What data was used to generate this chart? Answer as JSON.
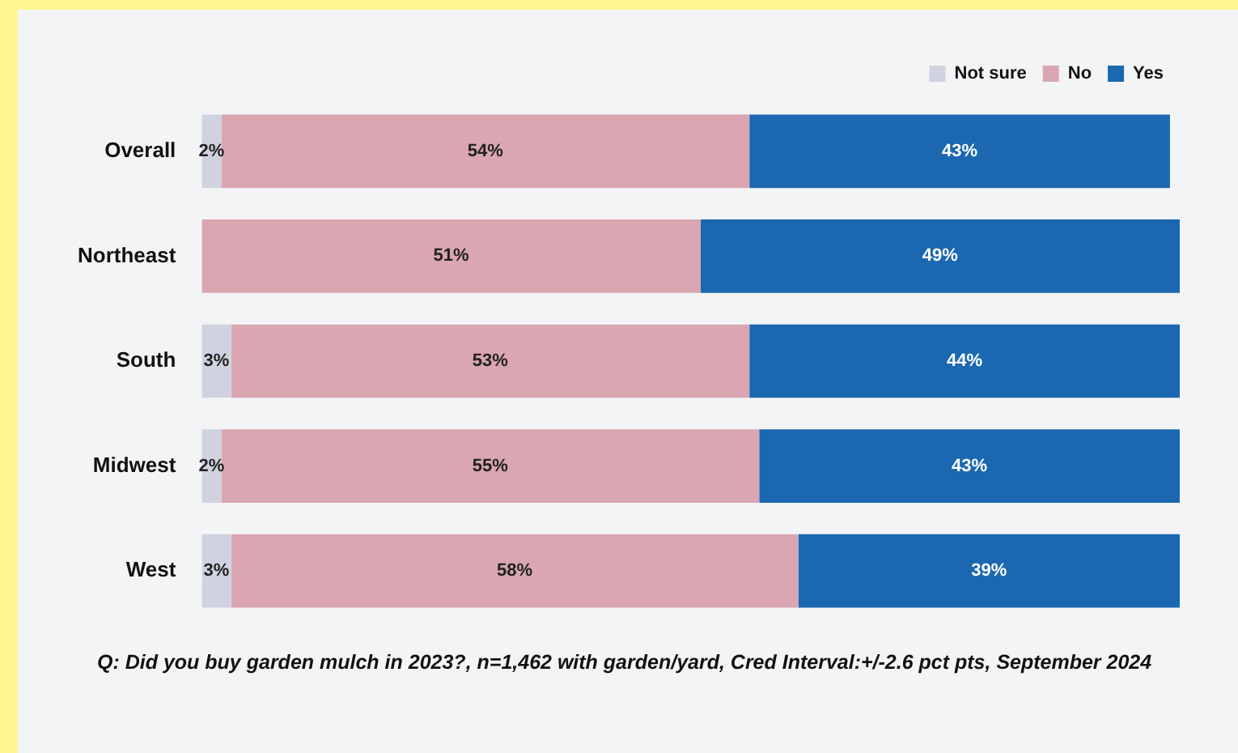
{
  "chart_data": {
    "type": "bar",
    "orientation": "horizontal",
    "stacked": true,
    "legend": "top right",
    "categories": [
      "Overall",
      "Northeast",
      "South",
      "Midwest",
      "West"
    ],
    "series": [
      {
        "name": "Not sure",
        "color": "#d0d3df",
        "values": [
          2,
          0,
          3,
          2,
          3
        ],
        "value_labels": [
          "2%",
          null,
          "3%",
          "2%",
          "3%"
        ]
      },
      {
        "name": "No",
        "color": "#d9a6b1",
        "values": [
          54,
          51,
          53,
          55,
          58
        ],
        "value_labels": [
          "54%",
          "51%",
          "53%",
          "55%",
          "58%"
        ]
      },
      {
        "name": "Yes",
        "color": "#1b68b1",
        "values": [
          43,
          49,
          44,
          43,
          39
        ],
        "value_labels": [
          "43%",
          "49%",
          "44%",
          "43%",
          "39%"
        ]
      }
    ],
    "annotations": [
      "Q:  Did you buy garden mulch in 2023?, n=1,462 with garden/yard, Cred Interval:+/-2.6 pct pts, September 2024"
    ]
  }
}
